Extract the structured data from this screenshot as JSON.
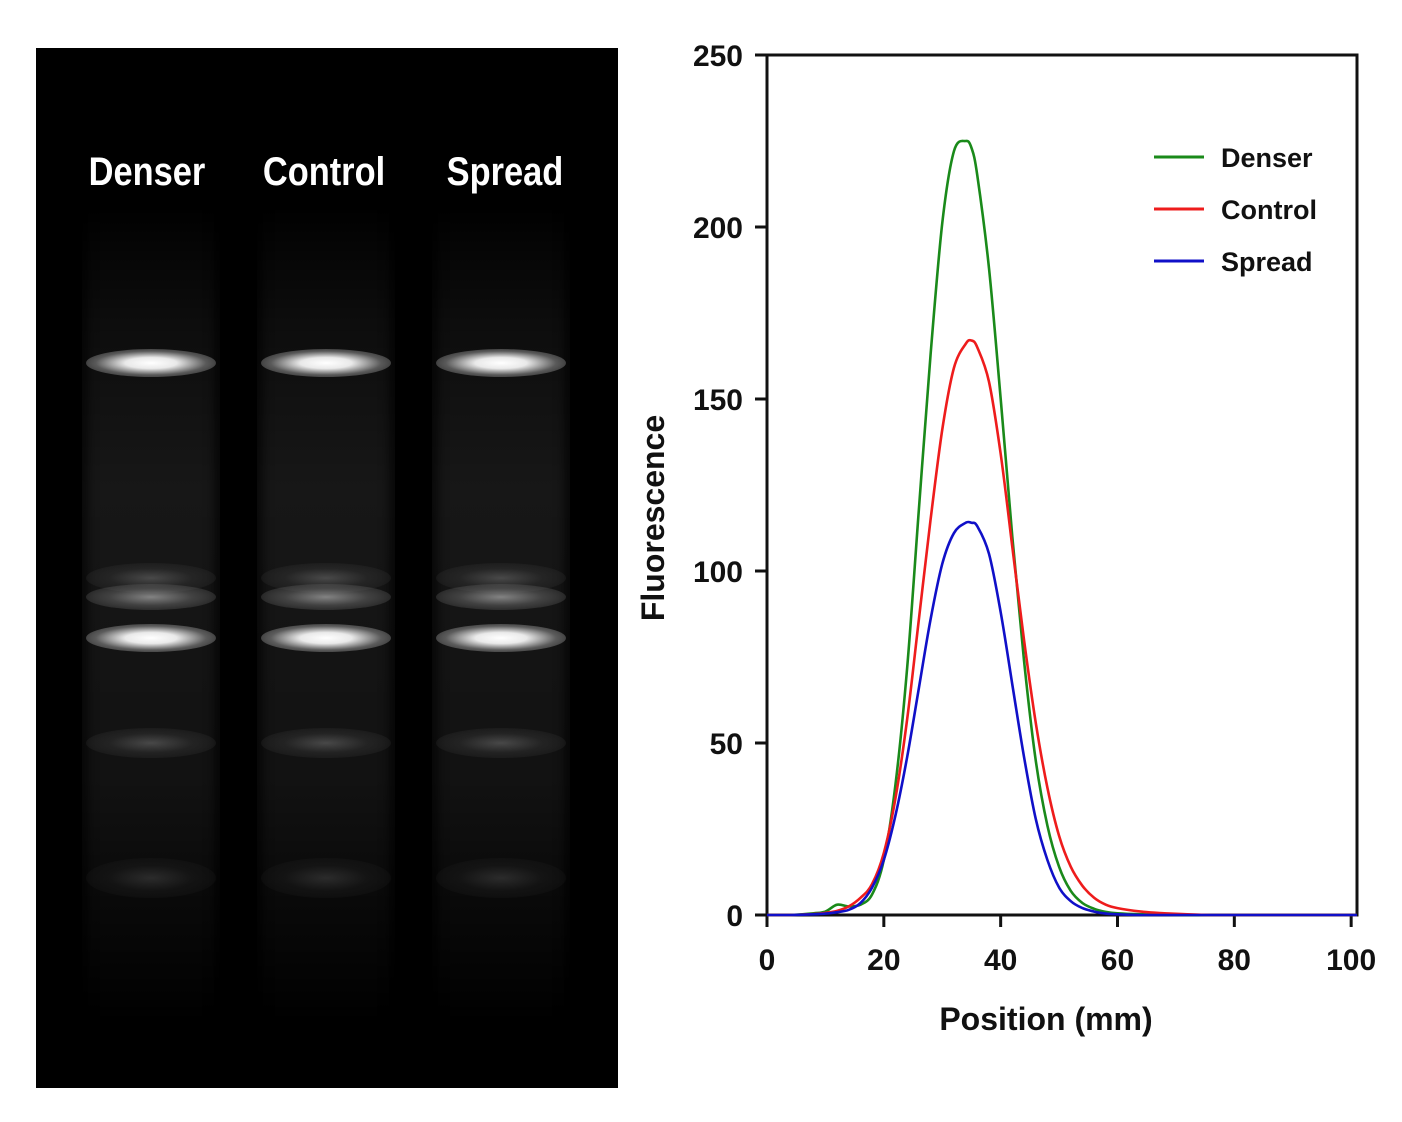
{
  "gel": {
    "lanes": [
      {
        "label": "Denser"
      },
      {
        "label": "Control"
      },
      {
        "label": "Spread"
      }
    ]
  },
  "chart_data": {
    "type": "line",
    "xlabel": "Position (mm)",
    "ylabel": "Fluorescence",
    "xlim": [
      0,
      101
    ],
    "ylim": [
      0,
      250
    ],
    "xticks": [
      0,
      20,
      40,
      60,
      80,
      100
    ],
    "yticks": [
      0,
      50,
      100,
      150,
      200,
      250
    ],
    "grid": false,
    "legend_position": "top-right",
    "x": [
      0,
      4,
      8,
      10,
      12,
      14,
      16,
      18,
      20,
      22,
      24,
      26,
      28,
      30,
      32,
      34,
      35,
      36,
      38,
      40,
      42,
      44,
      46,
      48,
      50,
      52,
      54,
      56,
      58,
      60,
      64,
      68,
      72,
      76,
      80,
      85,
      90,
      95,
      101
    ],
    "series": [
      {
        "name": "Denser",
        "color": "#1a8a1a",
        "values": [
          0,
          0,
          0.5,
          1,
          3,
          2.5,
          3,
          6,
          16,
          38,
          72,
          118,
          163,
          201,
          222,
          225,
          223,
          215,
          188,
          150,
          110,
          74,
          45,
          26,
          14,
          7,
          3.5,
          1.8,
          0.9,
          0.5,
          0.2,
          0.1,
          0,
          0,
          0,
          0,
          0,
          0,
          0
        ]
      },
      {
        "name": "Control",
        "color": "#ee1c1c",
        "values": [
          0,
          0,
          0.3,
          0.6,
          1.2,
          2.5,
          5,
          9,
          18,
          34,
          57,
          86,
          115,
          141,
          159,
          166,
          167,
          165,
          155,
          134,
          107,
          80,
          56,
          37,
          23,
          14,
          8.5,
          5,
          3,
          2,
          1,
          0.5,
          0.2,
          0,
          0,
          0,
          0,
          0,
          0
        ]
      },
      {
        "name": "Spread",
        "color": "#1010c8",
        "values": [
          0,
          0,
          0.2,
          0.4,
          0.8,
          1.5,
          3.5,
          8,
          16,
          29,
          46,
          66,
          86,
          102,
          111,
          114,
          114,
          113,
          105,
          88,
          67,
          46,
          28,
          16,
          8,
          4,
          2,
          1,
          0.4,
          0.2,
          0,
          0,
          0,
          0,
          0,
          0,
          0,
          0,
          0
        ]
      }
    ]
  }
}
